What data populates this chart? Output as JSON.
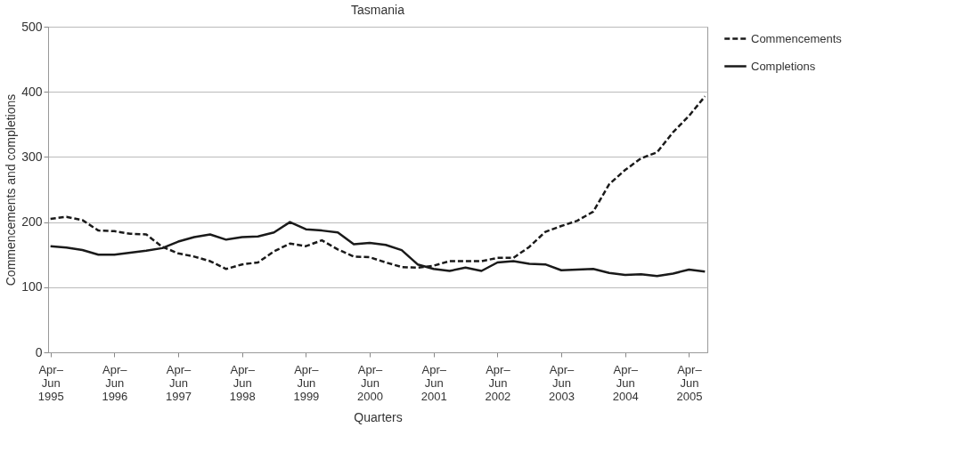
{
  "chart_data": {
    "type": "line",
    "title": "Tasmania",
    "xlabel": "Quarters",
    "ylabel": "Commencements and completions",
    "categories": [
      "Apr–\nJun\n1995",
      null,
      null,
      null,
      "Apr–\nJun\n1996",
      null,
      null,
      null,
      "Apr–\nJun\n1997",
      null,
      null,
      null,
      "Apr–\nJun\n1998",
      null,
      null,
      null,
      "Apr–\nJun\n1999",
      null,
      null,
      null,
      "Apr–\nJun\n2000",
      null,
      null,
      null,
      "Apr–\nJun\n2001",
      null,
      null,
      null,
      "Apr–\nJun\n2002",
      null,
      null,
      null,
      "Apr–\nJun\n2003",
      null,
      null,
      null,
      "Apr–\nJun\n2004",
      null,
      null,
      null,
      "Apr–\nJun\n2005",
      null
    ],
    "series": [
      {
        "name": "Commencements",
        "color": "#1a1a1a",
        "line_style": "dashed",
        "values": [
          205,
          208,
          203,
          187,
          186,
          182,
          181,
          162,
          152,
          147,
          140,
          128,
          135,
          138,
          155,
          167,
          163,
          172,
          158,
          147,
          146,
          138,
          131,
          130,
          133,
          140,
          140,
          140,
          145,
          145,
          162,
          185,
          194,
          202,
          216,
          258,
          280,
          298,
          307,
          338,
          363,
          393
        ]
      },
      {
        "name": "Completions",
        "color": "#1a1a1a",
        "line_style": "solid",
        "values": [
          163,
          161,
          157,
          150,
          150,
          153,
          156,
          160,
          170,
          177,
          181,
          173,
          177,
          178,
          184,
          200,
          189,
          187,
          184,
          166,
          168,
          165,
          157,
          135,
          128,
          125,
          130,
          125,
          138,
          140,
          136,
          135,
          126,
          127,
          128,
          122,
          119,
          120,
          117,
          121,
          127,
          124
        ]
      }
    ],
    "ylim": [
      0,
      500
    ],
    "yticks": [
      0,
      100,
      200,
      300,
      400,
      500
    ],
    "grid": "y",
    "legend": "top right",
    "marker": "none"
  }
}
